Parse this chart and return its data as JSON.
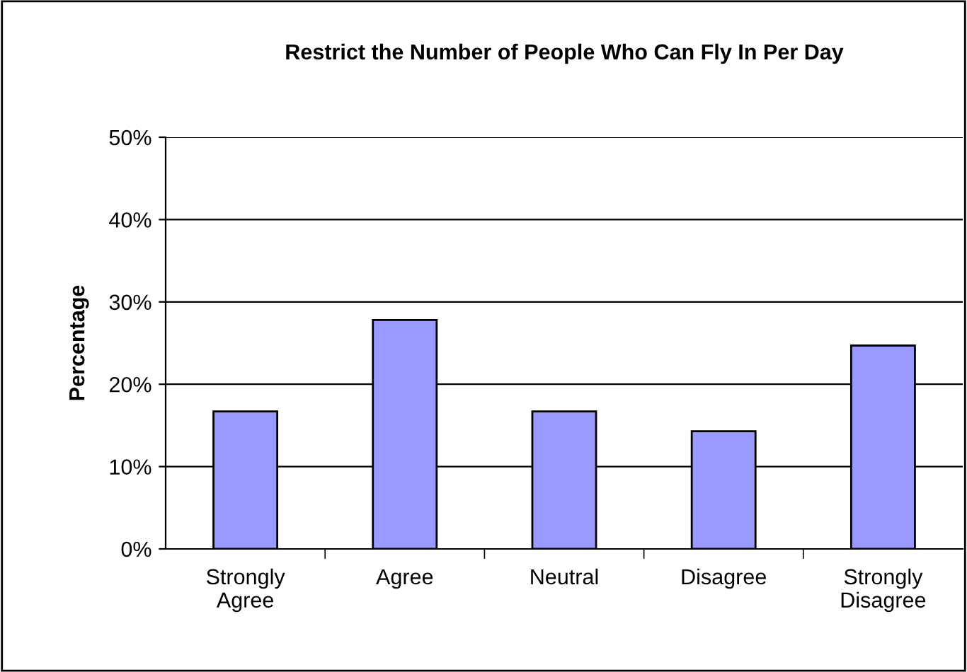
{
  "chart_data": {
    "type": "bar",
    "title": "Restrict the Number of People Who Can Fly In Per Day",
    "ylabel": "Percentage",
    "categories": [
      "Strongly\nAgree",
      "Agree",
      "Neutral",
      "Disagree",
      "Strongly\nDisagree"
    ],
    "values": [
      16.7,
      27.8,
      16.7,
      14.3,
      24.7
    ],
    "color": "#9999ff",
    "ylim": [
      0,
      50
    ],
    "yticks": [
      {
        "value": 0,
        "label": "0%"
      },
      {
        "value": 10,
        "label": "10%"
      },
      {
        "value": 20,
        "label": "20%"
      },
      {
        "value": 30,
        "label": "30%"
      },
      {
        "value": 40,
        "label": "40%"
      },
      {
        "value": 50,
        "label": "50%"
      }
    ],
    "grid": "y",
    "legend": false
  }
}
